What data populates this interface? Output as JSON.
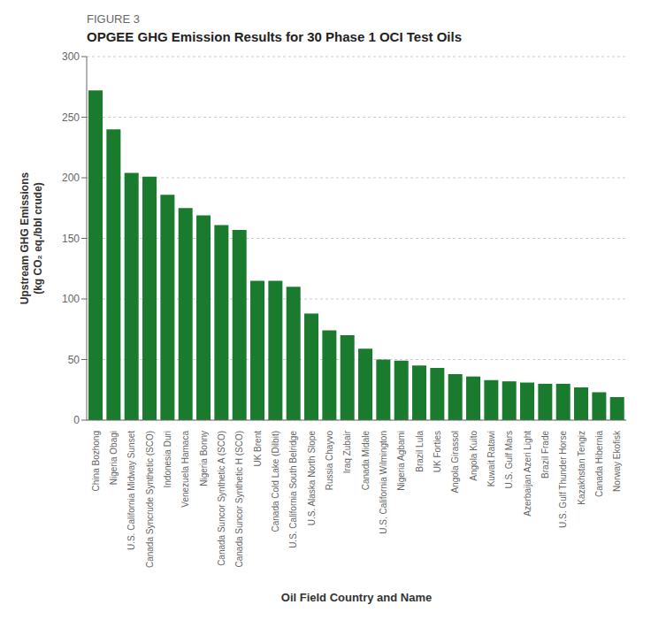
{
  "chart_data": {
    "type": "bar",
    "subtitle": "FIGURE 3",
    "title": "OPGEE GHG Emission Results for 30 Phase 1 OCI Test Oils",
    "xlabel": "Oil Field Country and Name",
    "ylabel": "Upstream GHG Emissions\n(kg CO₂ eq./bbl crude)",
    "categories": [
      "China Bozhong",
      "Nigeria Obagi",
      "U.S. California Midway Sunset",
      "Canada Syncrude Synthetic (SCO)",
      "Indonesia Duri",
      "Venezuela Hamaca",
      "Nigeria Bonny",
      "Canada Suncor Synthetic A (SCO)",
      "Canada Suncor Synthetic H (SCO)",
      "UK Brent",
      "Canada Cold Lake (Dilbit)",
      "U.S. California South Belridge",
      "U.S. Alaska North Slope",
      "Russia Chayvo",
      "Iraq Zubair",
      "Canada Midale",
      "U.S. California Wilmington",
      "Nigeria Agbami",
      "Brazil Lula",
      "UK Forties",
      "Angola Girassol",
      "Angola Kuito",
      "Kuwait Ratawi",
      "U.S. Gulf Mars",
      "Azerbaijan Azeri Light",
      "Brazil Frade",
      "U.S. Gulf Thunder Horse",
      "Kazakhstan Tengiz",
      "Canada Hibernia",
      "Norway Ekofisk"
    ],
    "values": [
      272,
      240,
      204,
      201,
      186,
      175,
      169,
      161,
      157,
      115,
      115,
      110,
      88,
      74,
      70,
      59,
      50,
      49,
      45,
      43,
      38,
      36,
      33,
      32,
      31,
      30,
      30,
      27,
      23,
      19
    ],
    "color": "#1a7a2e",
    "ylim": [
      0,
      300
    ],
    "yticks": [
      0,
      50,
      100,
      150,
      200,
      250,
      300
    ],
    "grid": true
  }
}
